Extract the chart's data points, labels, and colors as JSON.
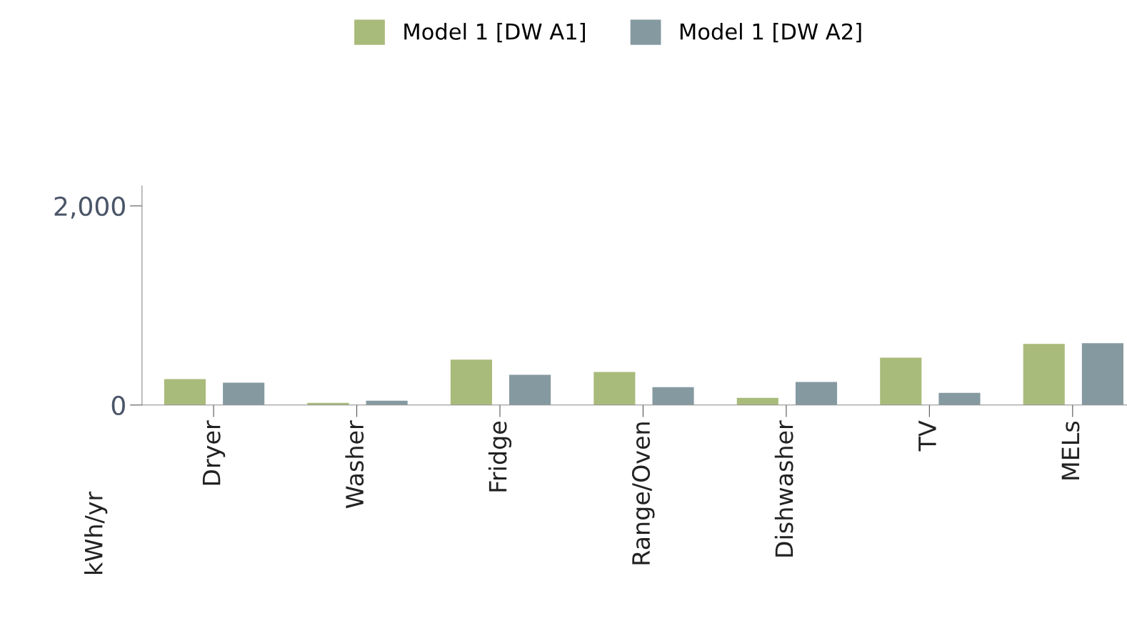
{
  "chart_data": {
    "type": "bar",
    "ylabel": "kWh/yr",
    "categories": [
      "Dryer",
      "Washer",
      "Fridge",
      "Range/Oven",
      "Dishwasher",
      "TV",
      "MELs"
    ],
    "series": [
      {
        "name": "Model 1 [DW A1]",
        "color": "#a9bb7a",
        "values": [
          260,
          22,
          455,
          332,
          72,
          476,
          614
        ]
      },
      {
        "name": "Model 1 [DW A2]",
        "color": "#8599a0",
        "values": [
          224,
          43,
          303,
          180,
          231,
          123,
          620
        ]
      }
    ],
    "ylim": [
      0,
      2200
    ],
    "yticks": [
      0,
      {
        "value": 2000,
        "label": "2,000"
      }
    ],
    "grid": false,
    "legend": "top"
  }
}
